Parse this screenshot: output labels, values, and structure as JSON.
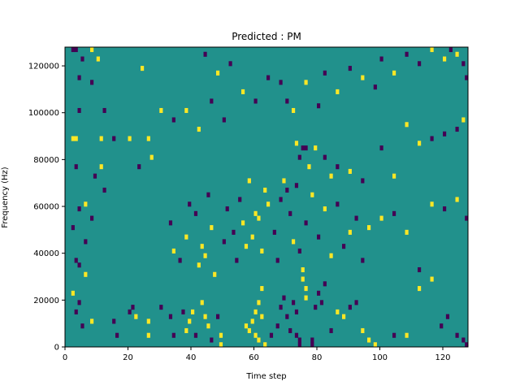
{
  "chart_data": {
    "type": "heatmap",
    "title": "Predicted : PM",
    "xlabel": "Time step",
    "ylabel": "Frequency (Hz)",
    "xlim": [
      0,
      128
    ],
    "ylim": [
      0,
      128000
    ],
    "x_ticks": [
      0,
      20,
      40,
      60,
      80,
      100,
      120
    ],
    "x_tick_labels": [
      "0",
      "20",
      "40",
      "60",
      "80",
      "100",
      "120"
    ],
    "y_ticks": [
      0,
      20000,
      40000,
      60000,
      80000,
      100000,
      120000
    ],
    "y_tick_labels": [
      "0",
      "20000",
      "40000",
      "60000",
      "80000",
      "100000",
      "120000"
    ],
    "grid": false,
    "colormap": "viridis",
    "value_levels": [
      -1,
      0,
      1
    ],
    "background_value": 0,
    "colors": {
      "low": "#440154",
      "mid": "#21918c",
      "high": "#fde725"
    },
    "cells": [
      {
        "t": 2,
        "f": 126000,
        "v": -1
      },
      {
        "t": 3,
        "f": 126000,
        "v": -1
      },
      {
        "t": 8,
        "f": 126000,
        "v": 1
      },
      {
        "t": 5,
        "f": 122000,
        "v": -1
      },
      {
        "t": 10,
        "f": 122000,
        "v": 1
      },
      {
        "t": 24,
        "f": 118000,
        "v": 1
      },
      {
        "t": 4,
        "f": 114000,
        "v": -1
      },
      {
        "t": 8,
        "f": 112000,
        "v": -1
      },
      {
        "t": 4,
        "f": 100000,
        "v": -1
      },
      {
        "t": 12,
        "f": 100000,
        "v": -1
      },
      {
        "t": 2,
        "f": 88000,
        "v": 1
      },
      {
        "t": 3,
        "f": 88000,
        "v": 1
      },
      {
        "t": 11,
        "f": 88000,
        "v": 1
      },
      {
        "t": 15,
        "f": 88000,
        "v": -1
      },
      {
        "t": 20,
        "f": 88000,
        "v": 1
      },
      {
        "t": 26,
        "f": 88000,
        "v": 1
      },
      {
        "t": 27,
        "f": 80000,
        "v": 1
      },
      {
        "t": 3,
        "f": 76000,
        "v": -1
      },
      {
        "t": 11,
        "f": 76000,
        "v": 1
      },
      {
        "t": 23,
        "f": 76000,
        "v": -1
      },
      {
        "t": 9,
        "f": 72000,
        "v": -1
      },
      {
        "t": 12,
        "f": 66000,
        "v": -1
      },
      {
        "t": 6,
        "f": 60000,
        "v": 1
      },
      {
        "t": 4,
        "f": 58000,
        "v": -1
      },
      {
        "t": 8,
        "f": 54000,
        "v": -1
      },
      {
        "t": 2,
        "f": 50000,
        "v": -1
      },
      {
        "t": 6,
        "f": 44000,
        "v": -1
      },
      {
        "t": 3,
        "f": 36000,
        "v": -1
      },
      {
        "t": 4,
        "f": 34000,
        "v": -1
      },
      {
        "t": 6,
        "f": 30000,
        "v": 1
      },
      {
        "t": 2,
        "f": 22000,
        "v": 1
      },
      {
        "t": 4,
        "f": 18000,
        "v": -1
      },
      {
        "t": 3,
        "f": 14000,
        "v": -1
      },
      {
        "t": 5,
        "f": 8000,
        "v": -1
      },
      {
        "t": 8,
        "f": 10000,
        "v": 1
      },
      {
        "t": 15,
        "f": 10000,
        "v": -1
      },
      {
        "t": 16,
        "f": 4000,
        "v": -1
      },
      {
        "t": 20,
        "f": 14000,
        "v": -1
      },
      {
        "t": 22,
        "f": 12000,
        "v": 1
      },
      {
        "t": 21,
        "f": 16000,
        "v": -1
      },
      {
        "t": 26,
        "f": 10000,
        "v": 1
      },
      {
        "t": 26,
        "f": 4000,
        "v": 1
      },
      {
        "t": 30,
        "f": 16000,
        "v": -1
      },
      {
        "t": 33,
        "f": 12000,
        "v": -1
      },
      {
        "t": 34,
        "f": 4000,
        "v": -1
      },
      {
        "t": 37,
        "f": 14000,
        "v": -1
      },
      {
        "t": 38,
        "f": 6000,
        "v": 1
      },
      {
        "t": 39,
        "f": 10000,
        "v": 1
      },
      {
        "t": 40,
        "f": 14000,
        "v": 1
      },
      {
        "t": 41,
        "f": 4000,
        "v": -1
      },
      {
        "t": 43,
        "f": 18000,
        "v": 1
      },
      {
        "t": 44,
        "f": 12000,
        "v": 1
      },
      {
        "t": 45,
        "f": 8000,
        "v": 1
      },
      {
        "t": 46,
        "f": 2000,
        "v": -1
      },
      {
        "t": 48,
        "f": 12000,
        "v": -1
      },
      {
        "t": 49,
        "f": 4000,
        "v": 1
      },
      {
        "t": 49,
        "f": 0,
        "v": 1
      },
      {
        "t": 57,
        "f": 8000,
        "v": 1
      },
      {
        "t": 58,
        "f": 6000,
        "v": 1
      },
      {
        "t": 59,
        "f": 10000,
        "v": 1
      },
      {
        "t": 60,
        "f": 14000,
        "v": 1
      },
      {
        "t": 61,
        "f": 18000,
        "v": 1
      },
      {
        "t": 62,
        "f": 12000,
        "v": 1
      },
      {
        "t": 61,
        "f": 2000,
        "v": 1
      },
      {
        "t": 60,
        "f": 4000,
        "v": 1
      },
      {
        "t": 63,
        "f": 0,
        "v": 1
      },
      {
        "t": 62,
        "f": 24000,
        "v": 1
      },
      {
        "t": 65,
        "f": 4000,
        "v": -1
      },
      {
        "t": 67,
        "f": 8000,
        "v": -1
      },
      {
        "t": 68,
        "f": 16000,
        "v": -1
      },
      {
        "t": 69,
        "f": 20000,
        "v": -1
      },
      {
        "t": 70,
        "f": 12000,
        "v": -1
      },
      {
        "t": 71,
        "f": 6000,
        "v": -1
      },
      {
        "t": 72,
        "f": 18000,
        "v": -1
      },
      {
        "t": 73,
        "f": 14000,
        "v": -1
      },
      {
        "t": 73,
        "f": 4000,
        "v": -1
      },
      {
        "t": 74,
        "f": 2000,
        "v": -1
      },
      {
        "t": 74,
        "f": 0,
        "v": -1
      },
      {
        "t": 75,
        "f": 28000,
        "v": 1
      },
      {
        "t": 76,
        "f": 24000,
        "v": 1
      },
      {
        "t": 76,
        "f": 20000,
        "v": 1
      },
      {
        "t": 75,
        "f": 32000,
        "v": 1
      },
      {
        "t": 78,
        "f": 2000,
        "v": -1
      },
      {
        "t": 78,
        "f": 0,
        "v": -1
      },
      {
        "t": 79,
        "f": 16000,
        "v": -1
      },
      {
        "t": 80,
        "f": 22000,
        "v": -1
      },
      {
        "t": 81,
        "f": 18000,
        "v": -1
      },
      {
        "t": 82,
        "f": 26000,
        "v": -1
      },
      {
        "t": 84,
        "f": 6000,
        "v": -1
      },
      {
        "t": 86,
        "f": 14000,
        "v": 1
      },
      {
        "t": 88,
        "f": 12000,
        "v": 1
      },
      {
        "t": 90,
        "f": 16000,
        "v": -1
      },
      {
        "t": 92,
        "f": 18000,
        "v": -1
      },
      {
        "t": 94,
        "f": 6000,
        "v": 1
      },
      {
        "t": 96,
        "f": 2000,
        "v": 1
      },
      {
        "t": 98,
        "f": 0,
        "v": 1
      },
      {
        "t": 104,
        "f": 4000,
        "v": -1
      },
      {
        "t": 108,
        "f": 4000,
        "v": 1
      },
      {
        "t": 112,
        "f": 24000,
        "v": 1
      },
      {
        "t": 116,
        "f": 28000,
        "v": 1
      },
      {
        "t": 119,
        "f": 8000,
        "v": -1
      },
      {
        "t": 121,
        "f": 12000,
        "v": -1
      },
      {
        "t": 124,
        "f": 4000,
        "v": -1
      },
      {
        "t": 126,
        "f": 2000,
        "v": -1
      },
      {
        "t": 127,
        "f": 0,
        "v": -1
      },
      {
        "t": 33,
        "f": 52000,
        "v": -1
      },
      {
        "t": 34,
        "f": 40000,
        "v": 1
      },
      {
        "t": 36,
        "f": 36000,
        "v": -1
      },
      {
        "t": 38,
        "f": 46000,
        "v": 1
      },
      {
        "t": 39,
        "f": 60000,
        "v": -1
      },
      {
        "t": 41,
        "f": 56000,
        "v": -1
      },
      {
        "t": 42,
        "f": 34000,
        "v": 1
      },
      {
        "t": 43,
        "f": 42000,
        "v": 1
      },
      {
        "t": 44,
        "f": 38000,
        "v": 1
      },
      {
        "t": 45,
        "f": 64000,
        "v": -1
      },
      {
        "t": 46,
        "f": 50000,
        "v": 1
      },
      {
        "t": 47,
        "f": 30000,
        "v": 1
      },
      {
        "t": 50,
        "f": 44000,
        "v": -1
      },
      {
        "t": 51,
        "f": 58000,
        "v": -1
      },
      {
        "t": 53,
        "f": 48000,
        "v": -1
      },
      {
        "t": 54,
        "f": 36000,
        "v": -1
      },
      {
        "t": 55,
        "f": 62000,
        "v": -1
      },
      {
        "t": 56,
        "f": 52000,
        "v": 1
      },
      {
        "t": 57,
        "f": 42000,
        "v": 1
      },
      {
        "t": 58,
        "f": 70000,
        "v": 1
      },
      {
        "t": 59,
        "f": 46000,
        "v": 1
      },
      {
        "t": 60,
        "f": 56000,
        "v": 1
      },
      {
        "t": 61,
        "f": 54000,
        "v": 1
      },
      {
        "t": 62,
        "f": 40000,
        "v": 1
      },
      {
        "t": 63,
        "f": 66000,
        "v": 1
      },
      {
        "t": 64,
        "f": 60000,
        "v": 1
      },
      {
        "t": 66,
        "f": 48000,
        "v": -1
      },
      {
        "t": 67,
        "f": 36000,
        "v": -1
      },
      {
        "t": 68,
        "f": 62000,
        "v": -1
      },
      {
        "t": 69,
        "f": 70000,
        "v": 1
      },
      {
        "t": 70,
        "f": 66000,
        "v": -1
      },
      {
        "t": 71,
        "f": 56000,
        "v": -1
      },
      {
        "t": 72,
        "f": 44000,
        "v": 1
      },
      {
        "t": 73,
        "f": 68000,
        "v": -1
      },
      {
        "t": 74,
        "f": 40000,
        "v": -1
      },
      {
        "t": 76,
        "f": 52000,
        "v": -1
      },
      {
        "t": 78,
        "f": 64000,
        "v": 1
      },
      {
        "t": 80,
        "f": 46000,
        "v": -1
      },
      {
        "t": 82,
        "f": 58000,
        "v": 1
      },
      {
        "t": 84,
        "f": 38000,
        "v": 1
      },
      {
        "t": 86,
        "f": 60000,
        "v": -1
      },
      {
        "t": 88,
        "f": 42000,
        "v": -1
      },
      {
        "t": 90,
        "f": 48000,
        "v": 1
      },
      {
        "t": 92,
        "f": 54000,
        "v": -1
      },
      {
        "t": 94,
        "f": 36000,
        "v": -1
      },
      {
        "t": 96,
        "f": 50000,
        "v": 1
      },
      {
        "t": 100,
        "f": 54000,
        "v": 1
      },
      {
        "t": 104,
        "f": 56000,
        "v": -1
      },
      {
        "t": 108,
        "f": 48000,
        "v": 1
      },
      {
        "t": 112,
        "f": 32000,
        "v": -1
      },
      {
        "t": 116,
        "f": 60000,
        "v": 1
      },
      {
        "t": 120,
        "f": 58000,
        "v": -1
      },
      {
        "t": 124,
        "f": 62000,
        "v": 1
      },
      {
        "t": 127,
        "f": 54000,
        "v": -1
      },
      {
        "t": 73,
        "f": 86000,
        "v": 1
      },
      {
        "t": 74,
        "f": 80000,
        "v": -1
      },
      {
        "t": 75,
        "f": 84000,
        "v": -1
      },
      {
        "t": 76,
        "f": 84000,
        "v": -1
      },
      {
        "t": 77,
        "f": 76000,
        "v": 1
      },
      {
        "t": 79,
        "f": 84000,
        "v": 1
      },
      {
        "t": 82,
        "f": 80000,
        "v": -1
      },
      {
        "t": 84,
        "f": 72000,
        "v": 1
      },
      {
        "t": 86,
        "f": 76000,
        "v": -1
      },
      {
        "t": 90,
        "f": 74000,
        "v": 1
      },
      {
        "t": 94,
        "f": 70000,
        "v": -1
      },
      {
        "t": 100,
        "f": 84000,
        "v": -1
      },
      {
        "t": 104,
        "f": 72000,
        "v": 1
      },
      {
        "t": 108,
        "f": 94000,
        "v": 1
      },
      {
        "t": 112,
        "f": 86000,
        "v": 1
      },
      {
        "t": 116,
        "f": 88000,
        "v": -1
      },
      {
        "t": 120,
        "f": 90000,
        "v": -1
      },
      {
        "t": 124,
        "f": 92000,
        "v": -1
      },
      {
        "t": 126,
        "f": 96000,
        "v": 1
      },
      {
        "t": 64,
        "f": 114000,
        "v": -1
      },
      {
        "t": 68,
        "f": 112000,
        "v": -1
      },
      {
        "t": 70,
        "f": 104000,
        "v": -1
      },
      {
        "t": 72,
        "f": 100000,
        "v": 1
      },
      {
        "t": 76,
        "f": 112000,
        "v": 1
      },
      {
        "t": 80,
        "f": 102000,
        "v": -1
      },
      {
        "t": 82,
        "f": 116000,
        "v": -1
      },
      {
        "t": 86,
        "f": 108000,
        "v": 1
      },
      {
        "t": 90,
        "f": 118000,
        "v": -1
      },
      {
        "t": 94,
        "f": 114000,
        "v": 1
      },
      {
        "t": 98,
        "f": 110000,
        "v": -1
      },
      {
        "t": 100,
        "f": 122000,
        "v": -1
      },
      {
        "t": 104,
        "f": 116000,
        "v": 1
      },
      {
        "t": 108,
        "f": 124000,
        "v": -1
      },
      {
        "t": 112,
        "f": 120000,
        "v": -1
      },
      {
        "t": 116,
        "f": 126000,
        "v": 1
      },
      {
        "t": 120,
        "f": 122000,
        "v": 1
      },
      {
        "t": 122,
        "f": 126000,
        "v": -1
      },
      {
        "t": 124,
        "f": 124000,
        "v": 1
      },
      {
        "t": 126,
        "f": 120000,
        "v": -1
      },
      {
        "t": 127,
        "f": 114000,
        "v": -1
      },
      {
        "t": 44,
        "f": 124000,
        "v": -1
      },
      {
        "t": 48,
        "f": 116000,
        "v": 1
      },
      {
        "t": 52,
        "f": 120000,
        "v": -1
      },
      {
        "t": 56,
        "f": 108000,
        "v": 1
      },
      {
        "t": 60,
        "f": 104000,
        "v": -1
      },
      {
        "t": 30,
        "f": 100000,
        "v": 1
      },
      {
        "t": 34,
        "f": 96000,
        "v": -1
      },
      {
        "t": 38,
        "f": 100000,
        "v": 1
      },
      {
        "t": 42,
        "f": 92000,
        "v": 1
      },
      {
        "t": 46,
        "f": 104000,
        "v": -1
      },
      {
        "t": 50,
        "f": 96000,
        "v": -1
      }
    ]
  }
}
